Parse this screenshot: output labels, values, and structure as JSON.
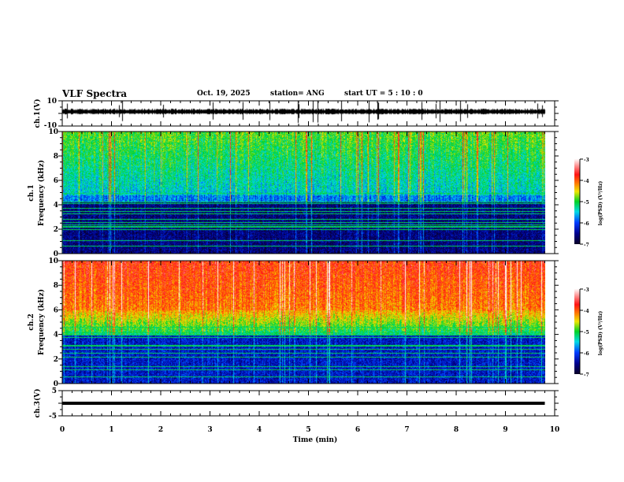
{
  "header": {
    "title": "VLF Spectra",
    "date": "Oct. 19, 2025",
    "station": "station= ANG",
    "start": "start  UT =   5  : 10 : 0"
  },
  "chart_data": [
    {
      "type": "line",
      "name": "ch1-waveform",
      "ylabel": "ch.1(V)",
      "ylim": [
        -10,
        10
      ],
      "yticks": [
        "10",
        "-10"
      ],
      "xlim": [
        0,
        10
      ]
    },
    {
      "type": "heatmap",
      "name": "ch1-spectrogram",
      "ylabel_top": "ch.1",
      "ylabel_bottom": "Frequency (kHz)",
      "ylim": [
        0,
        10
      ],
      "yticks": [
        "0",
        "2",
        "4",
        "6",
        "8",
        "10"
      ],
      "xlim": [
        0,
        9.8
      ],
      "colorbar": {
        "label": "log(PSD) (V²/Hz)",
        "range": [
          -7,
          -3
        ],
        "ticks": [
          "-3",
          "-4",
          "-5",
          "-6",
          "-7"
        ]
      }
    },
    {
      "type": "heatmap",
      "name": "ch2-spectrogram",
      "ylabel_top": "ch.2",
      "ylabel_bottom": "Frequency (kHz)",
      "ylim": [
        0,
        10
      ],
      "yticks": [
        "0",
        "2",
        "4",
        "6",
        "8",
        "10"
      ],
      "xlim": [
        0,
        9.8
      ],
      "colorbar": {
        "label": "log(PSD) (V²/Hz)",
        "range": [
          -7,
          -3
        ],
        "ticks": [
          "-3",
          "-4",
          "-5",
          "-6",
          "-7"
        ]
      }
    },
    {
      "type": "line",
      "name": "ch3-waveform",
      "ylabel": "ch.3(V)",
      "ylim": [
        -5,
        5
      ],
      "yticks": [
        "5",
        "-5"
      ],
      "xlim": [
        0,
        10
      ],
      "constant_value": 0
    }
  ],
  "xaxis": {
    "label": "Time (min)",
    "ticks": [
      "0",
      "1",
      "2",
      "3",
      "4",
      "5",
      "6",
      "7",
      "8",
      "9",
      "10"
    ]
  }
}
